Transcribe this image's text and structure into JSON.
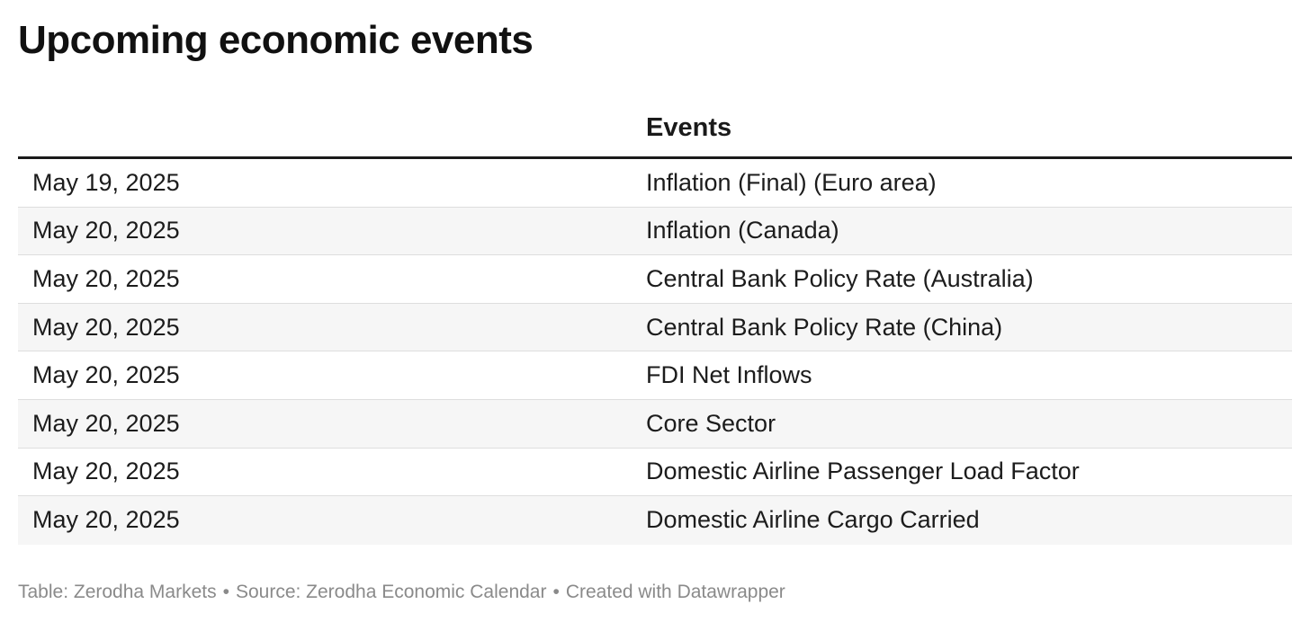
{
  "title": "Upcoming economic events",
  "table": {
    "columns": [
      "",
      "Events"
    ],
    "rows": [
      {
        "date": "May 19, 2025",
        "event": "Inflation (Final) (Euro area)"
      },
      {
        "date": "May 20, 2025",
        "event": "Inflation (Canada)"
      },
      {
        "date": "May 20, 2025",
        "event": "Central Bank Policy Rate (Australia)"
      },
      {
        "date": "May 20, 2025",
        "event": "Central Bank Policy Rate (China)"
      },
      {
        "date": "May 20, 2025",
        "event": "FDI Net Inflows"
      },
      {
        "date": "May 20, 2025",
        "event": "Core Sector"
      },
      {
        "date": "May 20, 2025",
        "event": "Domestic Airline Passenger Load Factor"
      },
      {
        "date": "May 20, 2025",
        "event": "Domestic Airline Cargo Carried"
      }
    ]
  },
  "footer": {
    "table_credit": "Table: Zerodha Markets",
    "source": "Source: Zerodha Economic Calendar",
    "created_with": "Created with Datawrapper",
    "separator": "•"
  },
  "colors": {
    "header_rule": "#1a1a1a",
    "stripe": "#f6f6f6",
    "row_border": "#dedede",
    "footer_text": "#8a8a8a"
  }
}
